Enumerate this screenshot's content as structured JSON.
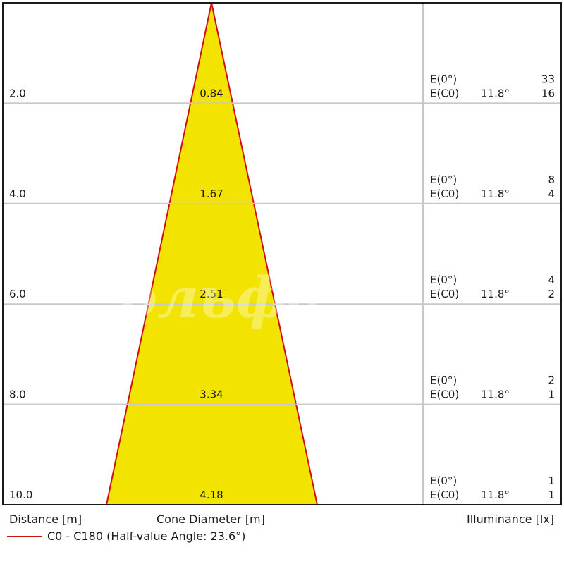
{
  "chart_data": {
    "type": "cone",
    "legend": "C0 - C180 (Half-value Angle: 23.6°)",
    "xlabel_left": "Distance [m]",
    "xlabel_center": "Cone Diameter [m]",
    "xlabel_right": "Illuminance [lx]",
    "colors": {
      "cone_fill": "#f2e400",
      "cone_edge": "#d01010",
      "grid": "#c8c8c8",
      "frame": "#1a1a1a"
    },
    "rows": [
      {
        "distance": "2.0",
        "diameter": "0.84",
        "e0_label": "E(0°)",
        "e0_value": "33",
        "ec0_label": "E(C0)",
        "ec0_angle": "11.8°",
        "ec0_value": "16"
      },
      {
        "distance": "4.0",
        "diameter": "1.67",
        "e0_label": "E(0°)",
        "e0_value": "8",
        "ec0_label": "E(C0)",
        "ec0_angle": "11.8°",
        "ec0_value": "4"
      },
      {
        "distance": "6.0",
        "diameter": "2.51",
        "e0_label": "E(0°)",
        "e0_value": "4",
        "ec0_label": "E(C0)",
        "ec0_angle": "11.8°",
        "ec0_value": "2"
      },
      {
        "distance": "8.0",
        "diameter": "3.34",
        "e0_label": "E(0°)",
        "e0_value": "2",
        "ec0_label": "E(C0)",
        "ec0_angle": "11.8°",
        "ec0_value": "1"
      },
      {
        "distance": "10.0",
        "diameter": "4.18",
        "e0_label": "E(0°)",
        "e0_value": "1",
        "ec0_label": "E(C0)",
        "ec0_angle": "11.8°",
        "ec0_value": "1"
      }
    ]
  }
}
